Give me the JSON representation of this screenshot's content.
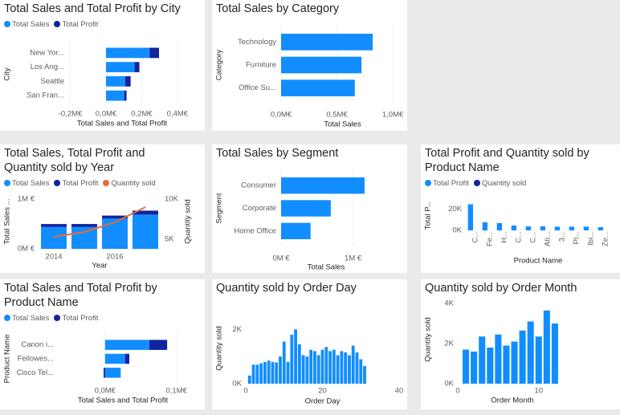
{
  "chart_data": [
    {
      "type": "hbar",
      "title": "Total Sales and Total Profit by City",
      "xlabel": "Total Sales and Total Profit",
      "ylabel": "City",
      "categories": [
        "New Yor...",
        "Los Ang...",
        "Seattle",
        "San Fran..."
      ],
      "series": [
        {
          "name": "Total Sales",
          "color": "#118dff",
          "values": [
            0.244,
            0.16,
            0.107,
            0.102
          ]
        },
        {
          "name": "Total Profit",
          "color": "#12239e",
          "values": [
            0.053,
            0.027,
            0.031,
            0.013
          ]
        }
      ],
      "xlim": [
        -0.27,
        0.45
      ],
      "xticks": [
        {
          "value": -0.2,
          "label": "-0,2M€"
        },
        {
          "value": 0,
          "label": "0,0M€"
        },
        {
          "value": 0.2,
          "label": "0,2M€"
        },
        {
          "value": 0.4,
          "label": "0,4M€"
        }
      ],
      "grid": true,
      "legend": "top-left"
    },
    {
      "type": "hbar",
      "title": "Total Sales by Category",
      "xlabel": "Total Sales",
      "ylabel": "Category",
      "categories": [
        "Technology",
        "Furniture",
        "Office Su..."
      ],
      "values": [
        0.82,
        0.72,
        0.66
      ],
      "color": "#118dff",
      "xlim": [
        0,
        1.1
      ],
      "xticks": [
        {
          "value": 0,
          "label": "0,0M€"
        },
        {
          "value": 0.5,
          "label": "0,5M€"
        },
        {
          "value": 1,
          "label": "1,0M€"
        }
      ],
      "grid": true
    },
    {
      "type": "combo",
      "title": "Total Sales, Total Profit and Quantity sold by Year",
      "xlabel": "Year",
      "ylabel": "Total Sales ...",
      "y2label": "Quantity sold",
      "categories": [
        "2014",
        null,
        "2016",
        null
      ],
      "series": [
        {
          "name": "Total Sales",
          "color": "#118dff",
          "values": [
            0.44,
            0.44,
            0.61,
            0.69
          ]
        },
        {
          "name": "Total Profit",
          "color": "#12239e",
          "values": [
            0.06,
            0.06,
            0.06,
            0.08
          ]
        },
        {
          "name": "Quantity sold",
          "color": "#e66c37",
          "axis": "y2",
          "values": [
            5300,
            5900,
            7100,
            9000
          ]
        }
      ],
      "ylim": [
        0,
        1.1
      ],
      "yticks": [
        {
          "value": 0,
          "label": "0M €"
        },
        {
          "value": 1,
          "label": "1M €"
        }
      ],
      "y2lim": [
        3800,
        10600
      ],
      "y2ticks": [
        {
          "value": 5000,
          "label": "5K"
        },
        {
          "value": 10000,
          "label": "10K"
        }
      ],
      "legend": "top-left"
    },
    {
      "type": "hbar",
      "title": "Total Sales by Segment",
      "xlabel": "Total Sales",
      "ylabel": "Segment",
      "categories": [
        "Consumer",
        "Corporate",
        "Home Office"
      ],
      "values": [
        1.16,
        0.69,
        0.41
      ],
      "color": "#118dff",
      "xlim": [
        0,
        1.25
      ],
      "xticks": [
        {
          "value": 0,
          "label": "0M €"
        },
        {
          "value": 1,
          "label": "1M €"
        }
      ],
      "grid": true
    },
    {
      "type": "column",
      "title": "Total Profit and Quantity sold by Product Name",
      "xlabel": "Product Name",
      "ylabel": "Total P...",
      "categories": [
        "C...",
        "Fe...",
        "H...",
        "C...",
        "C...",
        "Ati...",
        "3...",
        "Pl...",
        "Ibi...",
        "Ze..."
      ],
      "series": [
        {
          "name": "Total Profit",
          "color": "#118dff",
          "values": [
            24600,
            7700,
            6900,
            4600,
            3800,
            3800,
            3500,
            3500,
            3500,
            3000
          ]
        },
        {
          "name": "Quantity sold",
          "color": "#12239e",
          "values": [
            50,
            40,
            30,
            60,
            50,
            20,
            40,
            30,
            30,
            20
          ]
        }
      ],
      "ylim": [
        0,
        28000
      ],
      "yticks": [
        {
          "value": 0,
          "label": "0K"
        },
        {
          "value": 20000,
          "label": "20K"
        }
      ],
      "legend": "top-left"
    },
    {
      "type": "hbar",
      "title": "Total Sales and Total Profit by Product Name",
      "xlabel": "Total Sales and Total Profit",
      "ylabel": "Product Name",
      "categories": [
        "Canon i...",
        "Fellowes...",
        "Cisco Tel..."
      ],
      "series": [
        {
          "name": "Total Sales",
          "color": "#118dff",
          "values": [
            0.062,
            0.028,
            0.022
          ]
        },
        {
          "name": "Total Profit",
          "color": "#12239e",
          "values": [
            0.025,
            0.006,
            -0.002
          ]
        }
      ],
      "xlim": [
        -0.065,
        0.115
      ],
      "xticks": [
        {
          "value": 0,
          "label": "0,0M€"
        },
        {
          "value": 0.1,
          "label": "0,1M€"
        }
      ],
      "grid": true,
      "legend": "top-left"
    },
    {
      "type": "column",
      "title": "Quantity sold by Order Day",
      "xlabel": "Order Day",
      "ylabel": "Quantity sold",
      "x": [
        1,
        2,
        3,
        4,
        5,
        6,
        7,
        8,
        9,
        10,
        11,
        12,
        13,
        14,
        15,
        16,
        17,
        18,
        19,
        20,
        21,
        22,
        23,
        24,
        25,
        26,
        27,
        28,
        29,
        30,
        31
      ],
      "values": [
        300,
        700,
        700,
        750,
        800,
        850,
        800,
        780,
        1000,
        1550,
        800,
        1800,
        2000,
        1450,
        1050,
        1000,
        1250,
        1200,
        1050,
        1250,
        1350,
        1200,
        1250,
        1050,
        1200,
        1150,
        1050,
        1400,
        1150,
        900,
        650
      ],
      "color": "#118dff",
      "xlim": [
        0,
        40
      ],
      "xticks": [
        0,
        20,
        40
      ],
      "ylim": [
        0,
        2600
      ],
      "yticks": [
        {
          "value": 0,
          "label": "0K"
        },
        {
          "value": 2000,
          "label": "2K"
        }
      ]
    },
    {
      "type": "column",
      "title": "Quantity sold by Order Month",
      "xlabel": "Order Month",
      "ylabel": "Quantity sold",
      "x": [
        1,
        2,
        3,
        4,
        5,
        6,
        7,
        8,
        9,
        10,
        11,
        12
      ],
      "values": [
        1700,
        1600,
        2350,
        1800,
        2450,
        1900,
        2100,
        2650,
        3100,
        2350,
        3650,
        3000
      ],
      "color": "#118dff",
      "xlim": [
        0,
        13.5
      ],
      "xticks": [
        0,
        10
      ],
      "ylim": [
        0,
        4400
      ],
      "yticks": [
        {
          "value": 0,
          "label": "0K"
        },
        {
          "value": 2000,
          "label": "2K"
        },
        {
          "value": 4000,
          "label": "4K"
        }
      ]
    }
  ]
}
